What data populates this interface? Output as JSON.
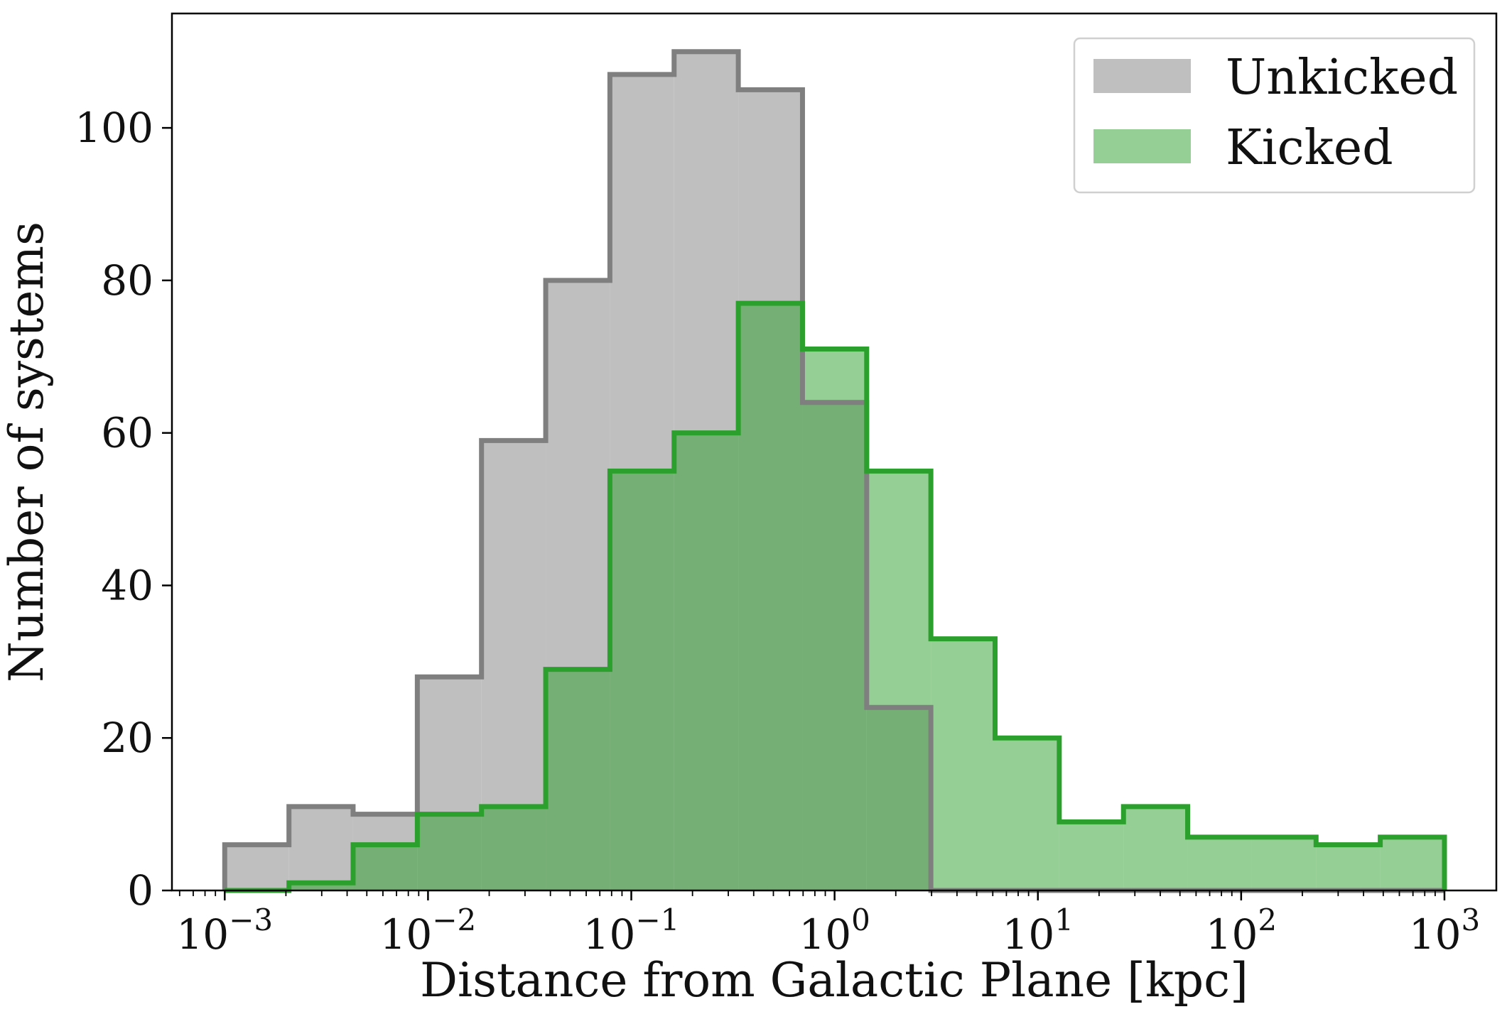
{
  "chart_data": {
    "type": "histogram",
    "xscale": "log",
    "xlabel": "Distance from Galactic Plane [kpc]",
    "ylabel": "Number of systems",
    "xlim": [
      0.00055,
      1800
    ],
    "ylim": [
      0,
      115
    ],
    "xticks": [
      {
        "base": "10",
        "exp": "−3",
        "value": 0.001
      },
      {
        "base": "10",
        "exp": "−2",
        "value": 0.01
      },
      {
        "base": "10",
        "exp": "−1",
        "value": 0.1
      },
      {
        "base": "10",
        "exp": "0",
        "value": 1
      },
      {
        "base": "10",
        "exp": "1",
        "value": 10
      },
      {
        "base": "10",
        "exp": "2",
        "value": 100
      },
      {
        "base": "10",
        "exp": "3",
        "value": 1000
      }
    ],
    "yticks": [
      {
        "label": "0",
        "value": 0
      },
      {
        "label": "20",
        "value": 20
      },
      {
        "label": "40",
        "value": 40
      },
      {
        "label": "60",
        "value": 60
      },
      {
        "label": "80",
        "value": 80
      },
      {
        "label": "100",
        "value": 100
      }
    ],
    "bin_edges": [
      0.001,
      0.00207,
      0.00428,
      0.00886,
      0.01833,
      0.03793,
      0.07848,
      0.1624,
      0.336,
      0.6952,
      1.4384,
      2.976,
      6.158,
      12.74,
      26.37,
      54.55,
      112.9,
      233.6,
      483.3,
      1000
    ],
    "series": [
      {
        "name": "Unkicked",
        "fill": "#bfbfbf",
        "edge": "#7f7f7f",
        "values": [
          6,
          11,
          10,
          28,
          59,
          80,
          107,
          110,
          105,
          64,
          24,
          0,
          0,
          0,
          0,
          0,
          0,
          0,
          0
        ]
      },
      {
        "name": "Kicked",
        "fill": "rgba(44,160,44,0.5)",
        "edge": "#2ca02c",
        "values": [
          0,
          1,
          6,
          10,
          11,
          29,
          55,
          60,
          77,
          71,
          55,
          33,
          20,
          9,
          11,
          7,
          7,
          6,
          7
        ]
      }
    ],
    "legend": {
      "position": "top-right",
      "items": [
        {
          "label": "Unkicked",
          "color": "#bfbfbf"
        },
        {
          "label": "Kicked",
          "color": "#95cf95"
        }
      ]
    },
    "grid": false
  }
}
